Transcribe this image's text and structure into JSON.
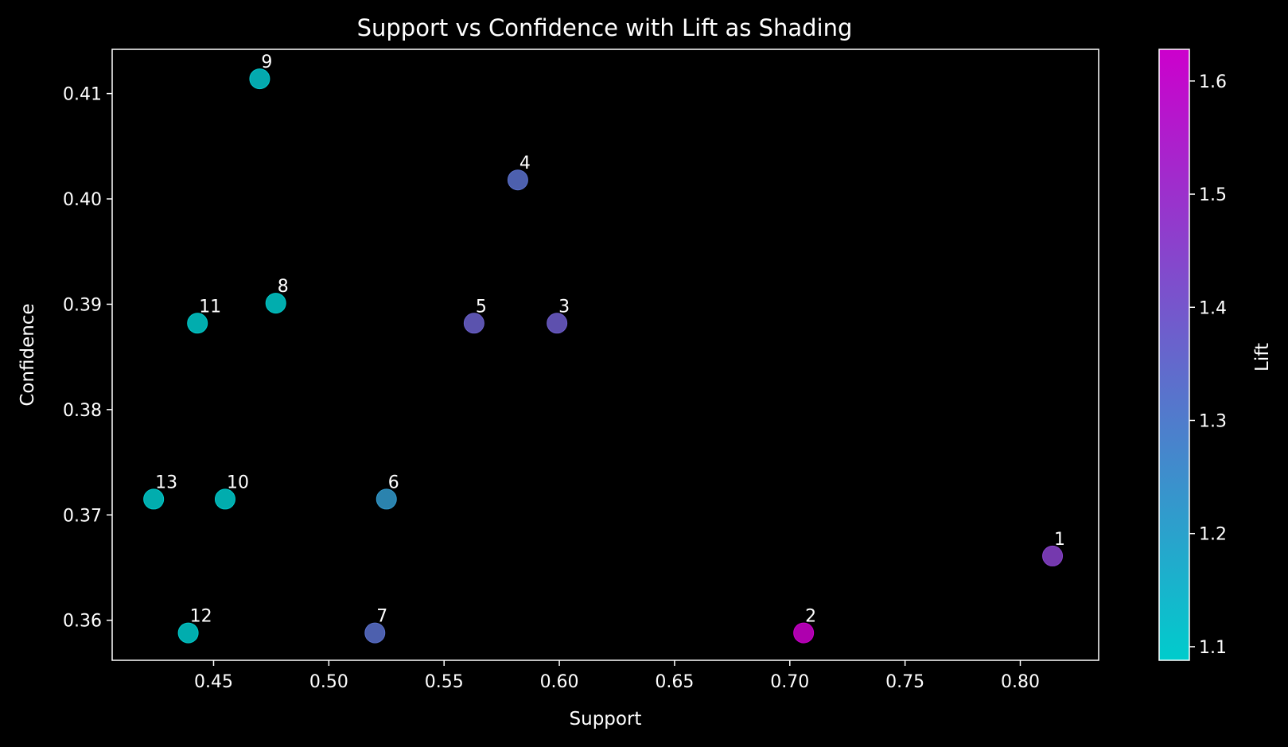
{
  "chart_data": {
    "type": "scatter",
    "title": "Support vs Confidence with Lift as Shading",
    "xlabel": "Support",
    "ylabel": "Confidence",
    "xlim": [
      0.406,
      0.834
    ],
    "ylim": [
      0.3562,
      0.4142
    ],
    "xticks": [
      "0.45",
      "0.50",
      "0.55",
      "0.60",
      "0.65",
      "0.70",
      "0.75",
      "0.80"
    ],
    "yticks": [
      "0.36",
      "0.37",
      "0.38",
      "0.39",
      "0.40",
      "0.41"
    ],
    "colorbar": {
      "label": "Lift",
      "range": [
        1.088,
        1.628
      ],
      "ticks": [
        "1.1",
        "1.2",
        "1.3",
        "1.4",
        "1.5",
        "1.6"
      ],
      "colors": [
        "#00cccc",
        "#cc00cc"
      ]
    },
    "grid": false,
    "points": [
      {
        "label": "1",
        "x": 0.814,
        "y": 0.3661,
        "lift": 1.45
      },
      {
        "label": "2",
        "x": 0.706,
        "y": 0.3588,
        "lift": 1.628
      },
      {
        "label": "3",
        "x": 0.599,
        "y": 0.3882,
        "lift": 1.38
      },
      {
        "label": "4",
        "x": 0.582,
        "y": 0.4018,
        "lift": 1.33
      },
      {
        "label": "5",
        "x": 0.563,
        "y": 0.3882,
        "lift": 1.37
      },
      {
        "label": "6",
        "x": 0.525,
        "y": 0.3715,
        "lift": 1.22
      },
      {
        "label": "7",
        "x": 0.52,
        "y": 0.3588,
        "lift": 1.33
      },
      {
        "label": "8",
        "x": 0.477,
        "y": 0.3901,
        "lift": 1.09
      },
      {
        "label": "9",
        "x": 0.47,
        "y": 0.4114,
        "lift": 1.1
      },
      {
        "label": "10",
        "x": 0.455,
        "y": 0.3715,
        "lift": 1.09
      },
      {
        "label": "11",
        "x": 0.443,
        "y": 0.3882,
        "lift": 1.09
      },
      {
        "label": "12",
        "x": 0.439,
        "y": 0.3588,
        "lift": 1.09
      },
      {
        "label": "13",
        "x": 0.424,
        "y": 0.3715,
        "lift": 1.09
      }
    ]
  }
}
